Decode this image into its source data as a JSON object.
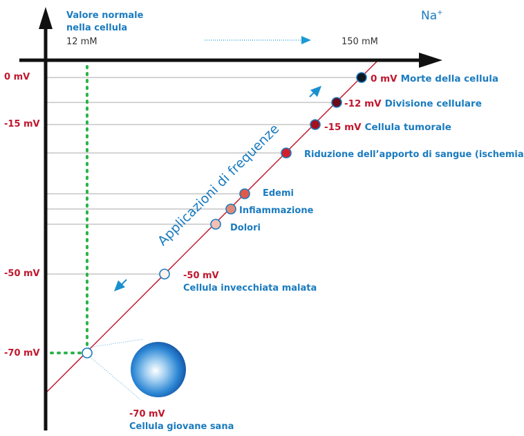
{
  "colors": {
    "blue": "#1a7bbf",
    "red": "#c0172d",
    "green": "#2bb34a",
    "axis": "#111111",
    "gridline": "#9a9a9a",
    "diagonal": "#c0172d"
  },
  "header": {
    "normal_value_line1": "Valore normale",
    "normal_value_line2": "nella cellula",
    "normal_concentration": "12 mM",
    "high_concentration": "150 mM",
    "ion_label": "Na",
    "ion_charge": "+"
  },
  "y_axis_labels": [
    "0 mV",
    "-15 mV",
    "-50 mV",
    "-70 mV"
  ],
  "rotated_label": "Applicazioni di frequenze",
  "states": [
    {
      "mv": "0 mV",
      "label": "Morte della cellula",
      "fill": "#111820"
    },
    {
      "mv": "-12 mV",
      "label": "Divisione cellulare",
      "fill": "#6a0c1a"
    },
    {
      "mv": "-15 mV",
      "label": "Cellula tumorale",
      "fill": "#a4101f"
    },
    {
      "mv": "",
      "label": "Riduzione dell’apporto di sangue (ischemia)",
      "fill": "#d0202e"
    },
    {
      "mv": "",
      "label": "Edemi",
      "fill": "#e05a4c"
    },
    {
      "mv": "",
      "label": "Infiammazione",
      "fill": "#e08a78"
    },
    {
      "mv": "",
      "label": "Dolori",
      "fill": "#f2c0b2"
    },
    {
      "mv": "-50 mV",
      "label": "Cellula invecchiata malata",
      "fill": "#fdf3ec"
    },
    {
      "mv": "-70 mV",
      "label": "Cellula giovane sana",
      "fill": "#ffffff"
    }
  ]
}
